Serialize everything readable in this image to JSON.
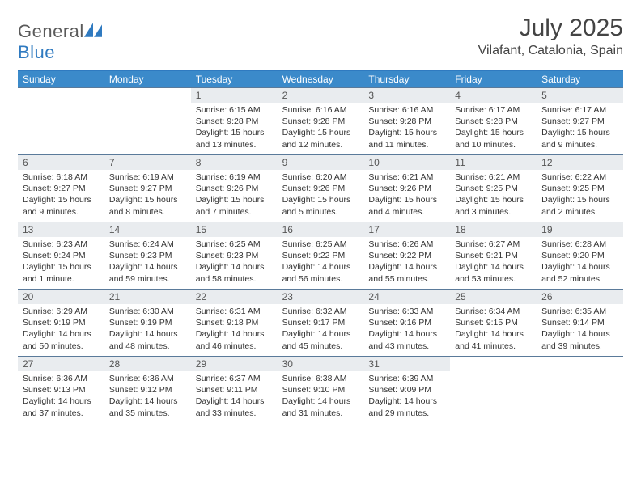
{
  "logo": {
    "text_gray": "General",
    "text_blue": "Blue"
  },
  "header": {
    "title": "July 2025",
    "location": "Vilafant, Catalonia, Spain"
  },
  "colors": {
    "header_blue": "#3b8aca",
    "topline_blue": "#2f7ac0",
    "daynum_bg": "#e9ecef",
    "week_sep": "#5a7a9a",
    "text": "#333333"
  },
  "day_names": [
    "Sunday",
    "Monday",
    "Tuesday",
    "Wednesday",
    "Thursday",
    "Friday",
    "Saturday"
  ],
  "weeks": [
    [
      null,
      null,
      {
        "n": 1,
        "sr": "6:15 AM",
        "ss": "9:28 PM",
        "dl": "15 hours and 13 minutes."
      },
      {
        "n": 2,
        "sr": "6:16 AM",
        "ss": "9:28 PM",
        "dl": "15 hours and 12 minutes."
      },
      {
        "n": 3,
        "sr": "6:16 AM",
        "ss": "9:28 PM",
        "dl": "15 hours and 11 minutes."
      },
      {
        "n": 4,
        "sr": "6:17 AM",
        "ss": "9:28 PM",
        "dl": "15 hours and 10 minutes."
      },
      {
        "n": 5,
        "sr": "6:17 AM",
        "ss": "9:27 PM",
        "dl": "15 hours and 9 minutes."
      }
    ],
    [
      {
        "n": 6,
        "sr": "6:18 AM",
        "ss": "9:27 PM",
        "dl": "15 hours and 9 minutes."
      },
      {
        "n": 7,
        "sr": "6:19 AM",
        "ss": "9:27 PM",
        "dl": "15 hours and 8 minutes."
      },
      {
        "n": 8,
        "sr": "6:19 AM",
        "ss": "9:26 PM",
        "dl": "15 hours and 7 minutes."
      },
      {
        "n": 9,
        "sr": "6:20 AM",
        "ss": "9:26 PM",
        "dl": "15 hours and 5 minutes."
      },
      {
        "n": 10,
        "sr": "6:21 AM",
        "ss": "9:26 PM",
        "dl": "15 hours and 4 minutes."
      },
      {
        "n": 11,
        "sr": "6:21 AM",
        "ss": "9:25 PM",
        "dl": "15 hours and 3 minutes."
      },
      {
        "n": 12,
        "sr": "6:22 AM",
        "ss": "9:25 PM",
        "dl": "15 hours and 2 minutes."
      }
    ],
    [
      {
        "n": 13,
        "sr": "6:23 AM",
        "ss": "9:24 PM",
        "dl": "15 hours and 1 minute."
      },
      {
        "n": 14,
        "sr": "6:24 AM",
        "ss": "9:23 PM",
        "dl": "14 hours and 59 minutes."
      },
      {
        "n": 15,
        "sr": "6:25 AM",
        "ss": "9:23 PM",
        "dl": "14 hours and 58 minutes."
      },
      {
        "n": 16,
        "sr": "6:25 AM",
        "ss": "9:22 PM",
        "dl": "14 hours and 56 minutes."
      },
      {
        "n": 17,
        "sr": "6:26 AM",
        "ss": "9:22 PM",
        "dl": "14 hours and 55 minutes."
      },
      {
        "n": 18,
        "sr": "6:27 AM",
        "ss": "9:21 PM",
        "dl": "14 hours and 53 minutes."
      },
      {
        "n": 19,
        "sr": "6:28 AM",
        "ss": "9:20 PM",
        "dl": "14 hours and 52 minutes."
      }
    ],
    [
      {
        "n": 20,
        "sr": "6:29 AM",
        "ss": "9:19 PM",
        "dl": "14 hours and 50 minutes."
      },
      {
        "n": 21,
        "sr": "6:30 AM",
        "ss": "9:19 PM",
        "dl": "14 hours and 48 minutes."
      },
      {
        "n": 22,
        "sr": "6:31 AM",
        "ss": "9:18 PM",
        "dl": "14 hours and 46 minutes."
      },
      {
        "n": 23,
        "sr": "6:32 AM",
        "ss": "9:17 PM",
        "dl": "14 hours and 45 minutes."
      },
      {
        "n": 24,
        "sr": "6:33 AM",
        "ss": "9:16 PM",
        "dl": "14 hours and 43 minutes."
      },
      {
        "n": 25,
        "sr": "6:34 AM",
        "ss": "9:15 PM",
        "dl": "14 hours and 41 minutes."
      },
      {
        "n": 26,
        "sr": "6:35 AM",
        "ss": "9:14 PM",
        "dl": "14 hours and 39 minutes."
      }
    ],
    [
      {
        "n": 27,
        "sr": "6:36 AM",
        "ss": "9:13 PM",
        "dl": "14 hours and 37 minutes."
      },
      {
        "n": 28,
        "sr": "6:36 AM",
        "ss": "9:12 PM",
        "dl": "14 hours and 35 minutes."
      },
      {
        "n": 29,
        "sr": "6:37 AM",
        "ss": "9:11 PM",
        "dl": "14 hours and 33 minutes."
      },
      {
        "n": 30,
        "sr": "6:38 AM",
        "ss": "9:10 PM",
        "dl": "14 hours and 31 minutes."
      },
      {
        "n": 31,
        "sr": "6:39 AM",
        "ss": "9:09 PM",
        "dl": "14 hours and 29 minutes."
      },
      null,
      null
    ]
  ],
  "labels": {
    "sunrise": "Sunrise:",
    "sunset": "Sunset:",
    "daylight": "Daylight:"
  }
}
